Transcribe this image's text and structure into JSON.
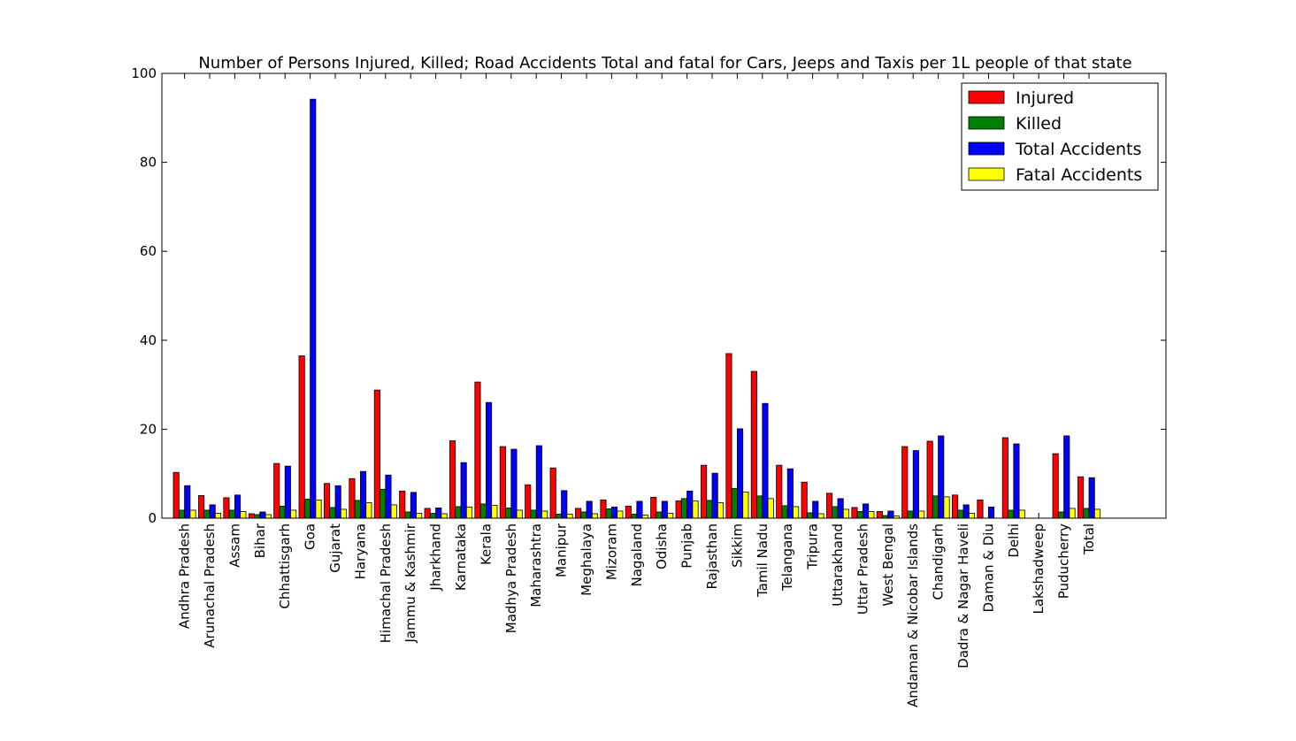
{
  "chart_data": {
    "type": "bar",
    "title": "Number of Persons Injured, Killed; Road Accidents Total and fatal for Cars, Jeeps and Taxis per 1L people of that state",
    "xlabel": "",
    "ylabel": "",
    "ylim": [
      0,
      100
    ],
    "yticks": [
      0,
      20,
      40,
      60,
      80,
      100
    ],
    "grid": false,
    "legend_position": "top-right",
    "categories": [
      "Andhra Pradesh",
      "Arunachal Pradesh",
      "Assam",
      "Bihar",
      "Chhattisgarh",
      "Goa",
      "Gujarat",
      "Haryana",
      "Himachal Pradesh",
      "Jammu & Kashmir",
      "Jharkhand",
      "Karnataka",
      "Kerala",
      "Madhya Pradesh",
      "Maharashtra",
      "Manipur",
      "Meghalaya",
      "Mizoram",
      "Nagaland",
      "Odisha",
      "Punjab",
      "Rajasthan",
      "Sikkim",
      "Tamil Nadu",
      "Telangana",
      "Tripura",
      "Uttarakhand",
      "Uttar Pradesh",
      "West Bengal",
      "Andaman & Nicobar Islands",
      "Chandigarh",
      "Dadra & Nagar Haveli",
      "Daman & Diu",
      "Delhi",
      "Lakshadweep",
      "Puducherry",
      "Total"
    ],
    "series": [
      {
        "name": "Injured",
        "color": "#ff0000",
        "values": [
          10.3,
          5.1,
          4.6,
          1.0,
          12.3,
          36.5,
          7.8,
          8.9,
          28.8,
          6.1,
          2.2,
          17.4,
          30.6,
          16.1,
          7.5,
          11.3,
          2.2,
          4.1,
          2.7,
          4.7,
          3.9,
          11.9,
          37.0,
          33.0,
          11.9,
          8.1,
          5.6,
          2.4,
          1.5,
          16.1,
          17.3,
          5.2,
          4.1,
          18.1,
          0,
          14.5,
          9.3
        ]
      },
      {
        "name": "Killed",
        "color": "#008000",
        "values": [
          1.8,
          1.8,
          1.8,
          0.8,
          2.7,
          4.3,
          2.4,
          4.0,
          6.5,
          1.4,
          1.1,
          2.6,
          3.2,
          2.3,
          1.8,
          0.9,
          1.4,
          2.1,
          0.9,
          1.4,
          4.4,
          4.0,
          6.7,
          5.0,
          2.8,
          1.2,
          2.6,
          1.5,
          0.6,
          1.6,
          5.0,
          1.8,
          0,
          1.8,
          0,
          1.4,
          2.2
        ]
      },
      {
        "name": "Total Accidents",
        "color": "#0000ff",
        "values": [
          7.3,
          3.0,
          5.2,
          1.4,
          11.7,
          94.2,
          7.3,
          10.5,
          9.7,
          5.8,
          2.3,
          12.5,
          26.0,
          15.5,
          16.3,
          6.2,
          3.8,
          2.5,
          3.8,
          3.8,
          6.1,
          10.1,
          20.1,
          25.8,
          11.1,
          3.8,
          4.4,
          3.2,
          1.6,
          15.2,
          18.5,
          3.0,
          2.5,
          16.7,
          0,
          18.5,
          9.1
        ]
      },
      {
        "name": "Fatal Accidents",
        "color": "#ffff00",
        "values": [
          1.8,
          1.1,
          1.5,
          0.8,
          1.8,
          4.1,
          2.0,
          3.5,
          3.0,
          1.1,
          1.0,
          2.5,
          2.9,
          1.8,
          1.6,
          0.9,
          1.0,
          1.6,
          0.7,
          1.1,
          3.9,
          3.5,
          5.9,
          4.4,
          2.6,
          1.0,
          2.0,
          1.5,
          0.5,
          1.6,
          4.8,
          1.1,
          0,
          1.8,
          0,
          2.2,
          2.0
        ]
      }
    ]
  }
}
